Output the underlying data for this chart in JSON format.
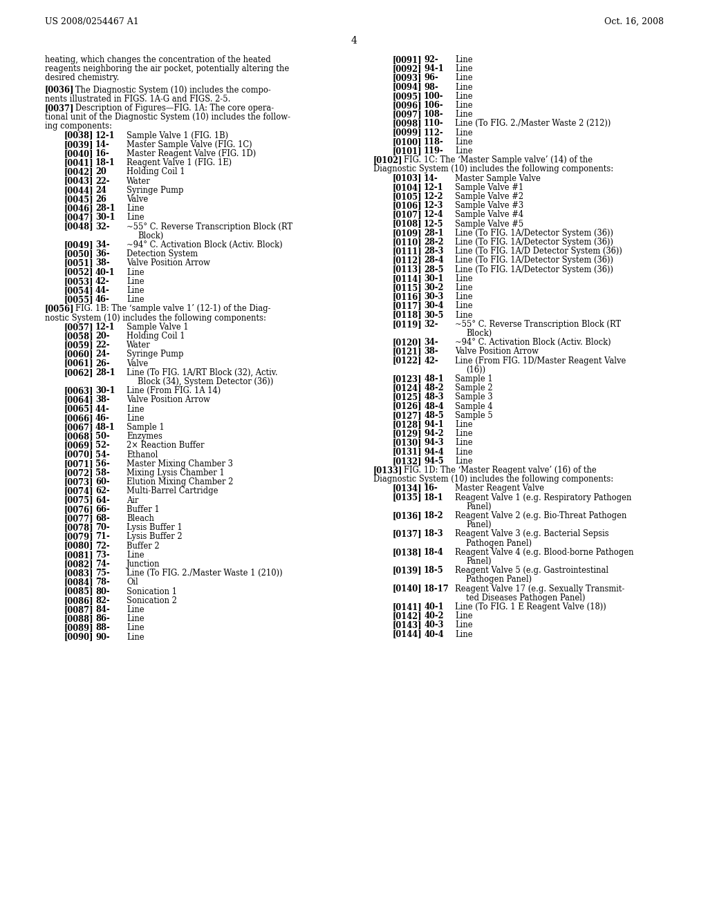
{
  "header_left": "US 2008/0254467 A1",
  "header_right": "Oct. 16, 2008",
  "page_number": "4",
  "background_color": "#ffffff",
  "left_col_lines": [
    [
      "para",
      "heating, which changes the concentration of the heated"
    ],
    [
      "para",
      "reagents neighboring the air pocket, potentially altering the"
    ],
    [
      "para",
      "desired chemistry."
    ],
    [
      "para_gap"
    ],
    [
      "ptag",
      "[0036]",
      "   The Diagnostic System (10) includes the compo-"
    ],
    [
      "para",
      "nents illustrated in FIGS. 1A-G and FIGS. 2-5."
    ],
    [
      "ptag",
      "[0037]",
      "   Description of Figures—FIG. 1A: The core opera-"
    ],
    [
      "para",
      "tional unit of the Diagnostic System (10) includes the follow-"
    ],
    [
      "para",
      "ing components:"
    ],
    [
      "litem",
      "[0038]",
      "12-1",
      "Sample Valve 1 (FIG. 1B)"
    ],
    [
      "litem",
      "[0039]",
      "14-",
      "Master Sample Valve (FIG. 1C)"
    ],
    [
      "litem",
      "[0040]",
      "16-",
      "Master Reagent Valve (FIG. 1D)"
    ],
    [
      "litem",
      "[0041]",
      "18-1",
      "Reagent Valve 1 (FIG. 1E)"
    ],
    [
      "litem",
      "[0042]",
      "20",
      "Holding Coil 1"
    ],
    [
      "litem",
      "[0043]",
      "22-",
      "Water"
    ],
    [
      "litem",
      "[0044]",
      "24",
      "Syringe Pump"
    ],
    [
      "litem",
      "[0045]",
      "26",
      "Valve"
    ],
    [
      "litem",
      "[0046]",
      "28-1",
      "Line"
    ],
    [
      "litem",
      "[0047]",
      "30-1",
      "Line"
    ],
    [
      "litem",
      "[0048]",
      "32-",
      "~55° C. Reverse Transcription Block (RT"
    ],
    [
      "litem_cont",
      "",
      "",
      "Block)"
    ],
    [
      "litem",
      "[0049]",
      "34-",
      "~94° C. Activation Block (Activ. Block)"
    ],
    [
      "litem",
      "[0050]",
      "36-",
      "Detection System"
    ],
    [
      "litem",
      "[0051]",
      "38-",
      "Valve Position Arrow"
    ],
    [
      "litem",
      "[0052]",
      "40-1",
      "Line"
    ],
    [
      "litem",
      "[0053]",
      "42-",
      "Line"
    ],
    [
      "litem",
      "[0054]",
      "44-",
      "Line"
    ],
    [
      "litem",
      "[0055]",
      "46-",
      "Line"
    ],
    [
      "ptag",
      "[0056]",
      "   FIG. 1B: The ‘sample valve 1’ (12-1) of the Diag-"
    ],
    [
      "para",
      "nostic System (10) includes the following components:"
    ],
    [
      "litem",
      "[0057]",
      "12-1",
      "Sample Valve 1"
    ],
    [
      "litem",
      "[0058]",
      "20-",
      "Holding Coil 1"
    ],
    [
      "litem",
      "[0059]",
      "22-",
      "Water"
    ],
    [
      "litem",
      "[0060]",
      "24-",
      "Syringe Pump"
    ],
    [
      "litem",
      "[0061]",
      "26-",
      "Valve"
    ],
    [
      "litem",
      "[0062]",
      "28-1",
      "Line (To FIG. 1A/RT Block (32), Activ."
    ],
    [
      "litem_cont",
      "",
      "",
      "Block (34), System Detector (36))"
    ],
    [
      "litem",
      "[0063]",
      "30-1",
      "Line (From FIG. 1A 14)"
    ],
    [
      "litem",
      "[0064]",
      "38-",
      "Valve Position Arrow"
    ],
    [
      "litem",
      "[0065]",
      "44-",
      "Line"
    ],
    [
      "litem",
      "[0066]",
      "46-",
      "Line"
    ],
    [
      "litem",
      "[0067]",
      "48-1",
      "Sample 1"
    ],
    [
      "litem",
      "[0068]",
      "50-",
      "Enzymes"
    ],
    [
      "litem",
      "[0069]",
      "52-",
      "2× Reaction Buffer"
    ],
    [
      "litem",
      "[0070]",
      "54-",
      "Ethanol"
    ],
    [
      "litem",
      "[0071]",
      "56-",
      "Master Mixing Chamber 3"
    ],
    [
      "litem",
      "[0072]",
      "58-",
      "Mixing Lysis Chamber 1"
    ],
    [
      "litem",
      "[0073]",
      "60-",
      "Elution Mixing Chamber 2"
    ],
    [
      "litem",
      "[0074]",
      "62-",
      "Multi-Barrel Cartridge"
    ],
    [
      "litem",
      "[0075]",
      "64-",
      "Air"
    ],
    [
      "litem",
      "[0076]",
      "66-",
      "Buffer 1"
    ],
    [
      "litem",
      "[0077]",
      "68-",
      "Bleach"
    ],
    [
      "litem",
      "[0078]",
      "70-",
      "Lysis Buffer 1"
    ],
    [
      "litem",
      "[0079]",
      "71-",
      "Lysis Buffer 2"
    ],
    [
      "litem",
      "[0080]",
      "72-",
      "Buffer 2"
    ],
    [
      "litem",
      "[0081]",
      "73-",
      "Line"
    ],
    [
      "litem",
      "[0082]",
      "74-",
      "Junction"
    ],
    [
      "litem",
      "[0083]",
      "75-",
      "Line (To FIG. 2./Master Waste 1 (210))"
    ],
    [
      "litem",
      "[0084]",
      "78-",
      "Oil"
    ],
    [
      "litem",
      "[0085]",
      "80-",
      "Sonication 1"
    ],
    [
      "litem",
      "[0086]",
      "82-",
      "Sonication 2"
    ],
    [
      "litem",
      "[0087]",
      "84-",
      "Line"
    ],
    [
      "litem",
      "[0088]",
      "86-",
      "Line"
    ],
    [
      "litem",
      "[0089]",
      "88-",
      "Line"
    ],
    [
      "litem",
      "[0090]",
      "90-",
      "Line"
    ]
  ],
  "right_col_lines": [
    [
      "litem",
      "[0091]",
      "92-",
      "Line"
    ],
    [
      "litem",
      "[0092]",
      "94-1",
      "Line"
    ],
    [
      "litem",
      "[0093]",
      "96-",
      "Line"
    ],
    [
      "litem",
      "[0094]",
      "98-",
      "Line"
    ],
    [
      "litem",
      "[0095]",
      "100-",
      "Line"
    ],
    [
      "litem",
      "[0096]",
      "106-",
      "Line"
    ],
    [
      "litem",
      "[0097]",
      "108-",
      "Line"
    ],
    [
      "litem",
      "[0098]",
      "110-",
      "Line (To FIG. 2./Master Waste 2 (212))"
    ],
    [
      "litem",
      "[0099]",
      "112-",
      "Line"
    ],
    [
      "litem",
      "[0100]",
      "118-",
      "Line"
    ],
    [
      "litem",
      "[0101]",
      "119-",
      "Line"
    ],
    [
      "ptag",
      "[0102]",
      "   FIG. 1C: The ‘Master Sample valve’ (14) of the"
    ],
    [
      "para",
      "Diagnostic System (10) includes the following components:"
    ],
    [
      "litem",
      "[0103]",
      "14-",
      "Master Sample Valve"
    ],
    [
      "litem",
      "[0104]",
      "12-1",
      "Sample Valve #1"
    ],
    [
      "litem",
      "[0105]",
      "12-2",
      "Sample Valve #2"
    ],
    [
      "litem",
      "[0106]",
      "12-3",
      "Sample Valve #3"
    ],
    [
      "litem",
      "[0107]",
      "12-4",
      "Sample Valve #4"
    ],
    [
      "litem",
      "[0108]",
      "12-5",
      "Sample Valve #5"
    ],
    [
      "litem",
      "[0109]",
      "28-1",
      "Line (To FIG. 1A/Detector System (36))"
    ],
    [
      "litem",
      "[0110]",
      "28-2",
      "Line (To FIG. 1A/Detector System (36))"
    ],
    [
      "litem",
      "[0111]",
      "28-3",
      "Line (To FIG. 1A/D Detector System (36))"
    ],
    [
      "litem",
      "[0112]",
      "28-4",
      "Line (To FIG. 1A/Detector System (36))"
    ],
    [
      "litem",
      "[0113]",
      "28-5",
      "Line (To FIG. 1A/Detector System (36))"
    ],
    [
      "litem",
      "[0114]",
      "30-1",
      "Line"
    ],
    [
      "litem",
      "[0115]",
      "30-2",
      "Line"
    ],
    [
      "litem",
      "[0116]",
      "30-3",
      "Line"
    ],
    [
      "litem",
      "[0117]",
      "30-4",
      "Line"
    ],
    [
      "litem",
      "[0118]",
      "30-5",
      "Line"
    ],
    [
      "litem",
      "[0119]",
      "32-",
      "~55° C. Reverse Transcription Block (RT"
    ],
    [
      "litem_cont",
      "",
      "",
      "Block)"
    ],
    [
      "litem",
      "[0120]",
      "34-",
      "~94° C. Activation Block (Activ. Block)"
    ],
    [
      "litem",
      "[0121]",
      "38-",
      "Valve Position Arrow"
    ],
    [
      "litem",
      "[0122]",
      "42-",
      "Line (From FIG. 1D/Master Reagent Valve"
    ],
    [
      "litem_cont",
      "",
      "",
      "(16))"
    ],
    [
      "litem",
      "[0123]",
      "48-1",
      "Sample 1"
    ],
    [
      "litem",
      "[0124]",
      "48-2",
      "Sample 2"
    ],
    [
      "litem",
      "[0125]",
      "48-3",
      "Sample 3"
    ],
    [
      "litem",
      "[0126]",
      "48-4",
      "Sample 4"
    ],
    [
      "litem",
      "[0127]",
      "48-5",
      "Sample 5"
    ],
    [
      "litem",
      "[0128]",
      "94-1",
      "Line"
    ],
    [
      "litem",
      "[0129]",
      "94-2",
      "Line"
    ],
    [
      "litem",
      "[0130]",
      "94-3",
      "Line"
    ],
    [
      "litem",
      "[0131]",
      "94-4",
      "Line"
    ],
    [
      "litem",
      "[0132]",
      "94-5",
      "Line"
    ],
    [
      "ptag",
      "[0133]",
      "   FIG. 1D: The ‘Master Reagent valve’ (16) of the"
    ],
    [
      "para",
      "Diagnostic System (10) includes the following components:"
    ],
    [
      "litem",
      "[0134]",
      "16-",
      "Master Reagent Valve"
    ],
    [
      "litem",
      "[0135]",
      "18-1",
      "Reagent Valve 1 (e.g. Respiratory Pathogen"
    ],
    [
      "litem_cont",
      "",
      "",
      "Panel)"
    ],
    [
      "litem",
      "[0136]",
      "18-2",
      "Reagent Valve 2 (e.g. Bio-Threat Pathogen"
    ],
    [
      "litem_cont",
      "",
      "",
      "Panel)"
    ],
    [
      "litem",
      "[0137]",
      "18-3",
      "Reagent Valve 3 (e.g. Bacterial Sepsis"
    ],
    [
      "litem_cont",
      "",
      "",
      "Pathogen Panel)"
    ],
    [
      "litem",
      "[0138]",
      "18-4",
      "Reagent Valve 4 (e.g. Blood-borne Pathogen"
    ],
    [
      "litem_cont",
      "",
      "",
      "Panel)"
    ],
    [
      "litem",
      "[0139]",
      "18-5",
      "Reagent Valve 5 (e.g. Gastrointestinal"
    ],
    [
      "litem_cont",
      "",
      "",
      "Pathogen Panel)"
    ],
    [
      "litem",
      "[0140]",
      "18-17",
      "Reagent Valve 17 (e.g. Sexually Transmit-"
    ],
    [
      "litem_cont",
      "",
      "",
      "ted Diseases Pathogen Panel)"
    ],
    [
      "litem",
      "[0141]",
      "40-1",
      "Line (To FIG. 1 E Reagent Valve (18))"
    ],
    [
      "litem",
      "[0142]",
      "40-2",
      "Line"
    ],
    [
      "litem",
      "[0143]",
      "40-3",
      "Line"
    ],
    [
      "litem",
      "[0144]",
      "40-4",
      "Line"
    ]
  ],
  "bold_nums": [
    "12-1",
    "14",
    "16",
    "18-1",
    "20",
    "24",
    "26",
    "28-1",
    "30-1",
    "32",
    "34",
    "36",
    "38",
    "40-1",
    "42",
    "44",
    "46",
    "48-1",
    "50",
    "52",
    "54",
    "56",
    "58",
    "60",
    "62",
    "64",
    "66",
    "68",
    "70",
    "71",
    "72",
    "73",
    "74",
    "75",
    "78",
    "80",
    "82",
    "84",
    "86",
    "88",
    "90",
    "92",
    "94-1",
    "96",
    "98",
    "100",
    "106",
    "108",
    "110",
    "112",
    "118",
    "119",
    "12-1",
    "12-2",
    "12-3",
    "12-4",
    "12-5",
    "28-1",
    "28-2",
    "28-3",
    "28-4",
    "28-5",
    "30-1",
    "30-2",
    "30-3",
    "30-4",
    "30-5",
    "32",
    "34",
    "38",
    "42",
    "48-1",
    "48-2",
    "48-3",
    "48-4",
    "48-5",
    "94-1",
    "94-2",
    "94-3",
    "94-4",
    "94-5",
    "16",
    "18-1",
    "18-2",
    "18-3",
    "18-4",
    "18-5",
    "18-17",
    "40-1",
    "40-2",
    "40-3",
    "40-4"
  ]
}
